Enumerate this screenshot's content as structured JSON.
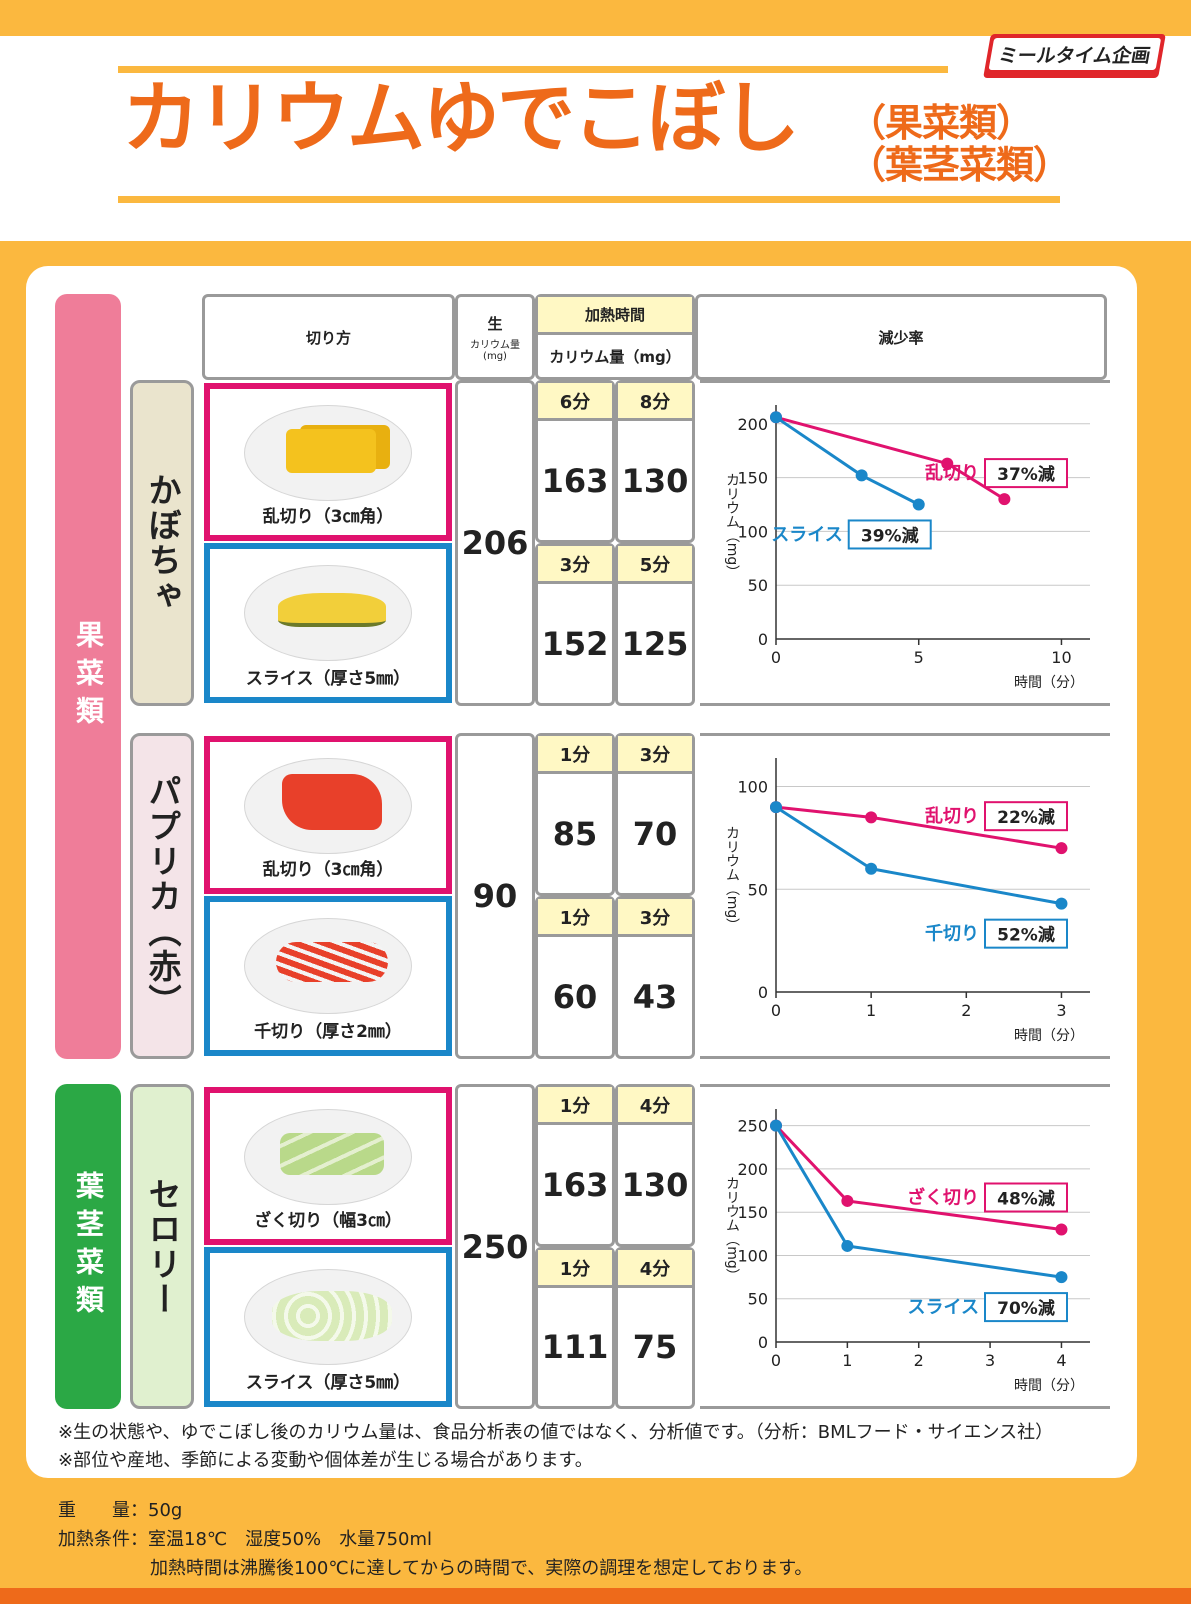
{
  "brand": "ミールタイム企画",
  "title": "カリウムゆでこぼし",
  "subtitle1": "（果菜類）",
  "subtitle2": "（葉茎菜類）",
  "colors": {
    "pink": "#e0126e",
    "blue": "#1a87c9",
    "orange": "#ee6a1a",
    "yellow": "#fbb83f"
  },
  "headers": {
    "cut": "切り方",
    "raw": "生",
    "raw_sub1": "カリウム量",
    "raw_sub2": "(mg)",
    "heat_time": "加熱時間",
    "potassium": "カリウム量（mg）",
    "reduction": "減少率"
  },
  "categories": {
    "fruit_veg": "果菜類",
    "leaf_veg": "葉茎菜類"
  },
  "rows": [
    {
      "name": "かぼちゃ",
      "raw": "206",
      "items": [
        {
          "cut": "乱切り（3㎝角）",
          "t1": "6分",
          "t2": "8分",
          "v1": "163",
          "v2": "130"
        },
        {
          "cut": "スライス（厚さ5㎜）",
          "t1": "3分",
          "t2": "5分",
          "v1": "152",
          "v2": "125"
        }
      ]
    },
    {
      "name": "パプリカ（赤）",
      "raw": "90",
      "items": [
        {
          "cut": "乱切り（3㎝角）",
          "t1": "1分",
          "t2": "3分",
          "v1": "85",
          "v2": "70"
        },
        {
          "cut": "千切り（厚さ2㎜）",
          "t1": "1分",
          "t2": "3分",
          "v1": "60",
          "v2": "43"
        }
      ]
    },
    {
      "name": "セロリー",
      "raw": "250",
      "items": [
        {
          "cut": "ざく切り（幅3㎝）",
          "t1": "1分",
          "t2": "4分",
          "v1": "163",
          "v2": "130"
        },
        {
          "cut": "スライス（厚さ5㎜）",
          "t1": "1分",
          "t2": "4分",
          "v1": "111",
          "v2": "75"
        }
      ]
    }
  ],
  "chart_data": [
    {
      "type": "line",
      "ylabel": "カリウム（mg）",
      "xlabel": "時間（分）",
      "xlim": [
        0,
        11
      ],
      "ylim": [
        0,
        210
      ],
      "xticks": [
        0,
        5,
        10
      ],
      "yticks": [
        0,
        50,
        100,
        150,
        200
      ],
      "series": [
        {
          "name": "乱切り",
          "color": "pink",
          "x": [
            0,
            6,
            8
          ],
          "y": [
            206,
            163,
            130
          ],
          "reduction": "37%減",
          "label_pos": "right"
        },
        {
          "name": "スライス",
          "color": "blue",
          "x": [
            0,
            3,
            5
          ],
          "y": [
            206,
            152,
            125
          ],
          "reduction": "39%減",
          "label_pos": "below"
        }
      ]
    },
    {
      "type": "line",
      "ylabel": "カリウム（mg）",
      "xlabel": "時間（分）",
      "xlim": [
        0,
        3.3
      ],
      "ylim": [
        0,
        110
      ],
      "xticks": [
        0,
        1,
        2,
        3
      ],
      "yticks": [
        0,
        50,
        100
      ],
      "series": [
        {
          "name": "乱切り",
          "color": "pink",
          "x": [
            0,
            1,
            3
          ],
          "y": [
            90,
            85,
            70
          ],
          "reduction": "22%減",
          "label_pos": "above"
        },
        {
          "name": "千切り",
          "color": "blue",
          "x": [
            0,
            1,
            3
          ],
          "y": [
            90,
            60,
            43
          ],
          "reduction": "52%減",
          "label_pos": "below"
        }
      ]
    },
    {
      "type": "line",
      "ylabel": "カリウム（mg）",
      "xlabel": "時間（分）",
      "xlim": [
        0,
        4.4
      ],
      "ylim": [
        0,
        260
      ],
      "xticks": [
        0,
        1,
        2,
        3,
        4
      ],
      "yticks": [
        0,
        50,
        100,
        150,
        200,
        250
      ],
      "series": [
        {
          "name": "ざく切り",
          "color": "pink",
          "x": [
            0,
            1,
            4
          ],
          "y": [
            250,
            163,
            130
          ],
          "reduction": "48%減",
          "label_pos": "above"
        },
        {
          "name": "スライス",
          "color": "blue",
          "x": [
            0,
            1,
            4
          ],
          "y": [
            250,
            111,
            75
          ],
          "reduction": "70%減",
          "label_pos": "below"
        }
      ]
    }
  ],
  "notes": {
    "n1": "※生の状態や、ゆでこぼし後のカリウム量は、食品分析表の値ではなく、分析値です。（分析：BMLフード・サイエンス社）",
    "n2": "※部位や産地、季節による変動や個体差が生じる場合があります。"
  },
  "spec": {
    "weight": "重　　量：50g",
    "cond": "加熱条件：室温18℃　湿度50%　水量750ml",
    "cond2": "加熱時間は沸騰後100℃に達してからの時間で、実際の調理を想定しております。"
  }
}
